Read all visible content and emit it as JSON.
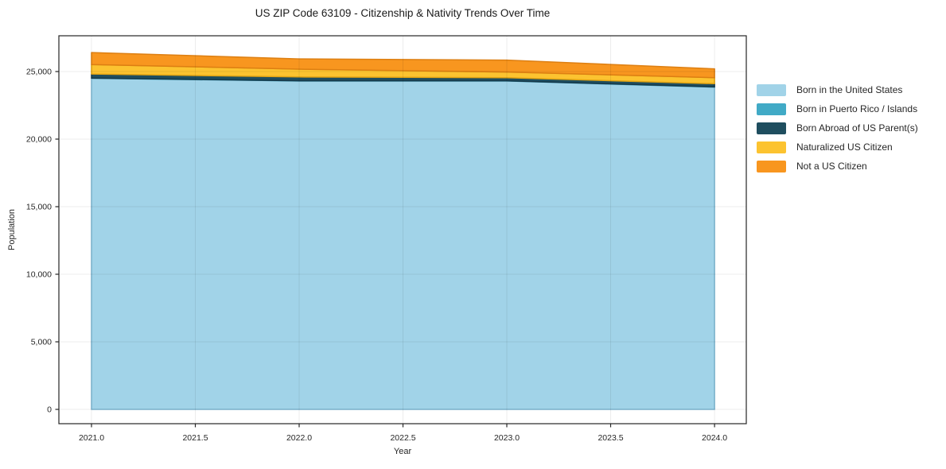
{
  "chart_data": {
    "type": "area",
    "stacked": true,
    "title": "US ZIP Code 63109 - Citizenship & Nativity Trends Over Time",
    "xlabel": "Year",
    "ylabel": "Population",
    "x": [
      2021,
      2022,
      2023,
      2024
    ],
    "series": [
      {
        "name": "Born in the United States",
        "color": "#a1d3e8",
        "edge_color": "#7fb8d4",
        "values": [
          24500,
          24300,
          24300,
          23850
        ]
      },
      {
        "name": "Born in Puerto Rico / Islands",
        "color": "#41aac6",
        "edge_color": "#2d8fa8",
        "values": [
          20,
          20,
          20,
          20
        ]
      },
      {
        "name": "Born Abroad of US Parent(s)",
        "color": "#1f4e5f",
        "edge_color": "#16394a",
        "values": [
          300,
          280,
          230,
          230
        ]
      },
      {
        "name": "Naturalized US Citizen",
        "color": "#fcc330",
        "edge_color": "#e2a412",
        "values": [
          700,
          580,
          420,
          450
        ]
      },
      {
        "name": "Not a US Citizen",
        "color": "#f8961f",
        "edge_color": "#dd7f12",
        "values": [
          890,
          760,
          880,
          650
        ]
      }
    ],
    "xticks": [
      2021.0,
      2021.5,
      2022.0,
      2022.5,
      2023.0,
      2023.5,
      2024.0
    ],
    "xtick_labels": [
      "2021.0",
      "2021.5",
      "2022.0",
      "2022.5",
      "2023.0",
      "2023.5",
      "2024.0"
    ],
    "yticks": [
      0,
      5000,
      10000,
      15000,
      20000,
      25000
    ],
    "ytick_labels": [
      "0",
      "5,000",
      "10,000",
      "15,000",
      "20,000",
      "25,000"
    ],
    "xlim": [
      2020.843,
      2024.153
    ],
    "ylim": [
      -1060,
      27650
    ],
    "grid": true,
    "legend_position": "right"
  },
  "style_colors": {
    "spine": "#262626",
    "grid": "rgba(0,0,0,0.075)",
    "text": "#262626",
    "background": "#ffffff"
  }
}
